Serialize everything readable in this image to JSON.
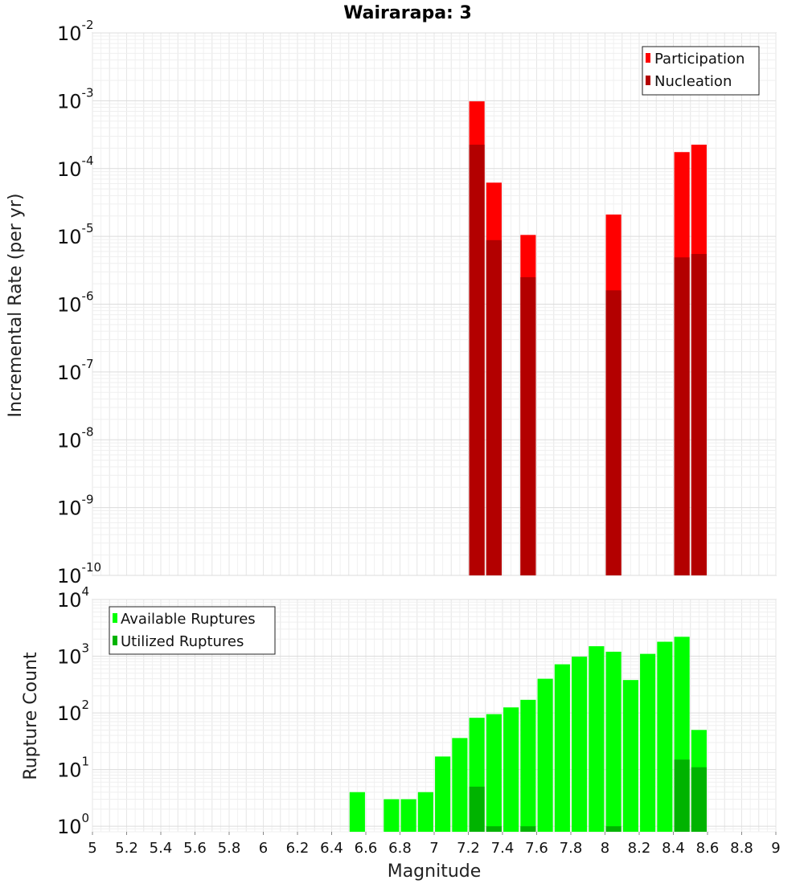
{
  "chart_data": [
    {
      "type": "bar",
      "title": "Wairarapa: 3",
      "xlabel": "",
      "ylabel": "Incremental Rate (per yr)",
      "xlim": [
        5,
        9
      ],
      "ylim": [
        1e-10,
        0.01
      ],
      "yscale": "log",
      "y_exponents": [
        -10,
        -9,
        -8,
        -7,
        -6,
        -5,
        -4,
        -3,
        -2
      ],
      "grid": true,
      "legend_position": "top-right",
      "bar_width": 0.09,
      "series": [
        {
          "name": "Participation",
          "color": "#ff0000",
          "points": [
            {
              "x": 7.25,
              "y": 0.00098
            },
            {
              "x": 7.35,
              "y": 6.2e-05
            },
            {
              "x": 7.55,
              "y": 1.05e-05
            },
            {
              "x": 8.05,
              "y": 2.1e-05
            },
            {
              "x": 8.45,
              "y": 0.000175
            },
            {
              "x": 8.55,
              "y": 0.000225
            }
          ]
        },
        {
          "name": "Nucleation",
          "color": "#b30000",
          "points": [
            {
              "x": 7.25,
              "y": 0.000225
            },
            {
              "x": 7.35,
              "y": 8.8e-06
            },
            {
              "x": 7.55,
              "y": 2.5e-06
            },
            {
              "x": 8.05,
              "y": 1.6e-06
            },
            {
              "x": 8.45,
              "y": 4.9e-06
            },
            {
              "x": 8.55,
              "y": 5.5e-06
            }
          ]
        }
      ]
    },
    {
      "type": "bar",
      "title": "",
      "xlabel": "Magnitude",
      "ylabel": "Rupture Count",
      "xlim": [
        5,
        9
      ],
      "ylim": [
        0.8,
        10000
      ],
      "yscale": "log",
      "y_exponents": [
        0,
        1,
        2,
        3,
        4
      ],
      "grid": true,
      "legend_position": "top-left",
      "bar_width": 0.09,
      "x_ticks": [
        "5",
        "5.2",
        "5.4",
        "5.6",
        "5.8",
        "6",
        "6.2",
        "6.4",
        "6.6",
        "6.8",
        "7",
        "7.2",
        "7.4",
        "7.6",
        "7.8",
        "8",
        "8.2",
        "8.4",
        "8.6",
        "8.8",
        "9"
      ],
      "series": [
        {
          "name": "Available Ruptures",
          "color": "#00ff00",
          "points": [
            {
              "x": 6.55,
              "y": 4
            },
            {
              "x": 6.75,
              "y": 3
            },
            {
              "x": 6.85,
              "y": 3
            },
            {
              "x": 6.95,
              "y": 4
            },
            {
              "x": 7.05,
              "y": 17
            },
            {
              "x": 7.15,
              "y": 36
            },
            {
              "x": 7.25,
              "y": 82
            },
            {
              "x": 7.35,
              "y": 95
            },
            {
              "x": 7.45,
              "y": 125
            },
            {
              "x": 7.55,
              "y": 170
            },
            {
              "x": 7.65,
              "y": 400
            },
            {
              "x": 7.75,
              "y": 720
            },
            {
              "x": 7.85,
              "y": 980
            },
            {
              "x": 7.95,
              "y": 1500
            },
            {
              "x": 8.05,
              "y": 1200
            },
            {
              "x": 8.15,
              "y": 380
            },
            {
              "x": 8.25,
              "y": 1100
            },
            {
              "x": 8.35,
              "y": 1800
            },
            {
              "x": 8.45,
              "y": 2200
            },
            {
              "x": 8.55,
              "y": 50
            }
          ]
        },
        {
          "name": "Utilized Ruptures",
          "color": "#00b300",
          "points": [
            {
              "x": 7.25,
              "y": 5
            },
            {
              "x": 7.35,
              "y": 1
            },
            {
              "x": 7.55,
              "y": 1
            },
            {
              "x": 8.05,
              "y": 1
            },
            {
              "x": 8.45,
              "y": 15
            },
            {
              "x": 8.55,
              "y": 11
            }
          ]
        }
      ]
    }
  ]
}
